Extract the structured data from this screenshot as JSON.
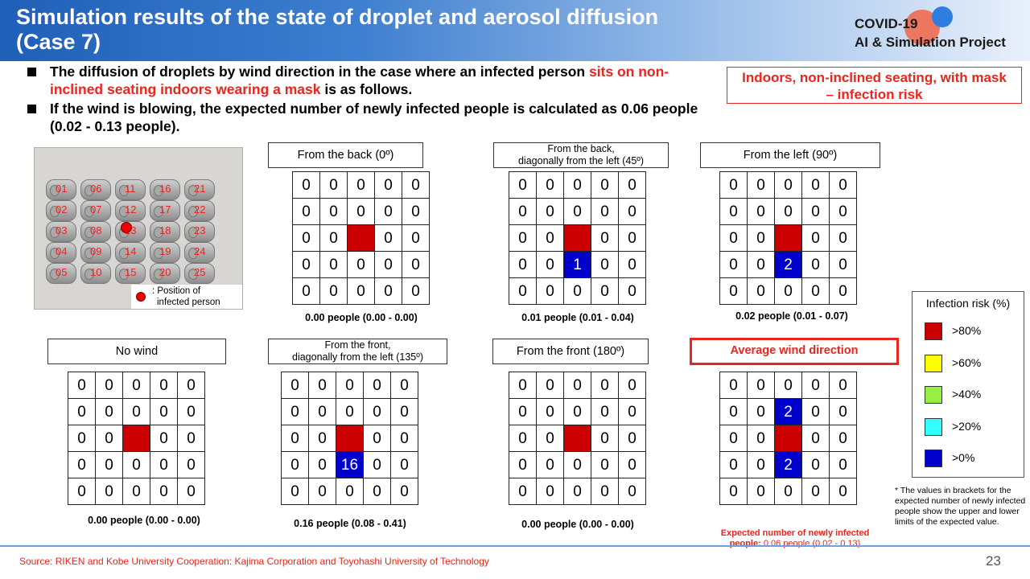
{
  "header": {
    "title_line1": "Simulation results of the state of droplet and aerosol diffusion",
    "title_line2": "(Case 7)",
    "logo_line1": "COVID-19",
    "logo_line2": "AI & Simulation Project"
  },
  "bullets": [
    {
      "text_before": "The diffusion of droplets by wind direction in the case where an infected person ",
      "highlight": "sits on non-inclined seating indoors wearing a mask",
      "text_after": " is as follows."
    },
    {
      "text_before": "If the wind is blowing, the expected number of newly infected people is calculated as 0.06 people (0.02 - 0.13 people).",
      "highlight": "",
      "text_after": ""
    }
  ],
  "risk_box": {
    "line1": "Indoors, non-inclined seating, with mask",
    "line2": "– infection risk"
  },
  "seat_map": {
    "seat_numbers": [
      [
        "01",
        "06",
        "11",
        "16",
        "21"
      ],
      [
        "02",
        "07",
        "12",
        "17",
        "22"
      ],
      [
        "03",
        "08",
        "13",
        "18",
        "23"
      ],
      [
        "04",
        "09",
        "14",
        "19",
        "24"
      ],
      [
        "05",
        "10",
        "15",
        "20",
        "25"
      ]
    ],
    "legend_line1": ": Position of",
    "legend_line2": "infected person"
  },
  "panels": [
    {
      "id": "back",
      "title_line1": "From the back (0º)",
      "title_line2": "",
      "grid": [
        [
          "0",
          "0",
          "0",
          "0",
          "0"
        ],
        [
          "0",
          "0",
          "0",
          "0",
          "0"
        ],
        [
          "0",
          "0",
          "",
          "0",
          "0"
        ],
        [
          "0",
          "0",
          "0",
          "0",
          "0"
        ],
        [
          "0",
          "0",
          "0",
          "0",
          "0"
        ]
      ],
      "people": "0.00 people (0.00 - 0.00)"
    },
    {
      "id": "back-left",
      "title_line1": "From the back,",
      "title_line2": "diagonally from the left (45º)",
      "grid": [
        [
          "0",
          "0",
          "0",
          "0",
          "0"
        ],
        [
          "0",
          "0",
          "0",
          "0",
          "0"
        ],
        [
          "0",
          "0",
          "",
          "0",
          "0"
        ],
        [
          "0",
          "0",
          "1",
          "0",
          "0"
        ],
        [
          "0",
          "0",
          "0",
          "0",
          "0"
        ]
      ],
      "people": "0.01 people (0.01 - 0.04)"
    },
    {
      "id": "left",
      "title_line1": "From the left (90º)",
      "title_line2": "",
      "grid": [
        [
          "0",
          "0",
          "0",
          "0",
          "0"
        ],
        [
          "0",
          "0",
          "0",
          "0",
          "0"
        ],
        [
          "0",
          "0",
          "",
          "0",
          "0"
        ],
        [
          "0",
          "0",
          "2",
          "0",
          "0"
        ],
        [
          "0",
          "0",
          "0",
          "0",
          "0"
        ]
      ],
      "people": "0.02 people (0.01 - 0.07)"
    },
    {
      "id": "no-wind",
      "title_line1": "No wind",
      "title_line2": "",
      "grid": [
        [
          "0",
          "0",
          "0",
          "0",
          "0"
        ],
        [
          "0",
          "0",
          "0",
          "0",
          "0"
        ],
        [
          "0",
          "0",
          "",
          "0",
          "0"
        ],
        [
          "0",
          "0",
          "0",
          "0",
          "0"
        ],
        [
          "0",
          "0",
          "0",
          "0",
          "0"
        ]
      ],
      "people": "0.00 people (0.00 - 0.00)"
    },
    {
      "id": "front-left",
      "title_line1": "From the front,",
      "title_line2": "diagonally from the left (135º)",
      "grid": [
        [
          "0",
          "0",
          "0",
          "0",
          "0"
        ],
        [
          "0",
          "0",
          "0",
          "0",
          "0"
        ],
        [
          "0",
          "0",
          "",
          "0",
          "0"
        ],
        [
          "0",
          "0",
          "16",
          "0",
          "0"
        ],
        [
          "0",
          "0",
          "0",
          "0",
          "0"
        ]
      ],
      "people": "0.16 people (0.08 - 0.41)"
    },
    {
      "id": "front",
      "title_line1": "From the front (180º)",
      "title_line2": "",
      "grid": [
        [
          "0",
          "0",
          "0",
          "0",
          "0"
        ],
        [
          "0",
          "0",
          "0",
          "0",
          "0"
        ],
        [
          "0",
          "0",
          "",
          "0",
          "0"
        ],
        [
          "0",
          "0",
          "0",
          "0",
          "0"
        ],
        [
          "0",
          "0",
          "0",
          "0",
          "0"
        ]
      ],
      "people": "0.00 people (0.00 - 0.00)"
    },
    {
      "id": "average",
      "title_line1": "Average wind direction",
      "title_line2": "",
      "grid": [
        [
          "0",
          "0",
          "0",
          "0",
          "0"
        ],
        [
          "0",
          "0",
          "2",
          "0",
          "0"
        ],
        [
          "0",
          "0",
          "",
          "0",
          "0"
        ],
        [
          "0",
          "0",
          "2",
          "0",
          "0"
        ],
        [
          "0",
          "0",
          "0",
          "0",
          "0"
        ]
      ],
      "people": ""
    }
  ],
  "legend": {
    "title": "Infection risk (%)",
    "items": [
      {
        "label": ">80%",
        "color": "#cc0000"
      },
      {
        "label": ">60%",
        "color": "#ffff00"
      },
      {
        "label": ">40%",
        "color": "#99ee44"
      },
      {
        "label": ">20%",
        "color": "#33ffff"
      },
      {
        "label": ">0%",
        "color": "#0000cc"
      }
    ]
  },
  "note": "* The values in brackets for the expected number of newly infected people show the upper and lower limits of the expected value.",
  "expected": {
    "label_line1": "Expected number of newly infected",
    "label_line2": "people:",
    "value": "0.06 people (0.02 - 0.13)"
  },
  "footer": {
    "source": "Source: RIKEN and Kobe University Cooperation: Kajima Corporation  and Toyohashi  University  of Technology",
    "page_number": "23"
  },
  "colors": {
    "source_cell": "#cc0000",
    "infection_cell": "#0000cc",
    "accent_red": "#e8261e"
  }
}
